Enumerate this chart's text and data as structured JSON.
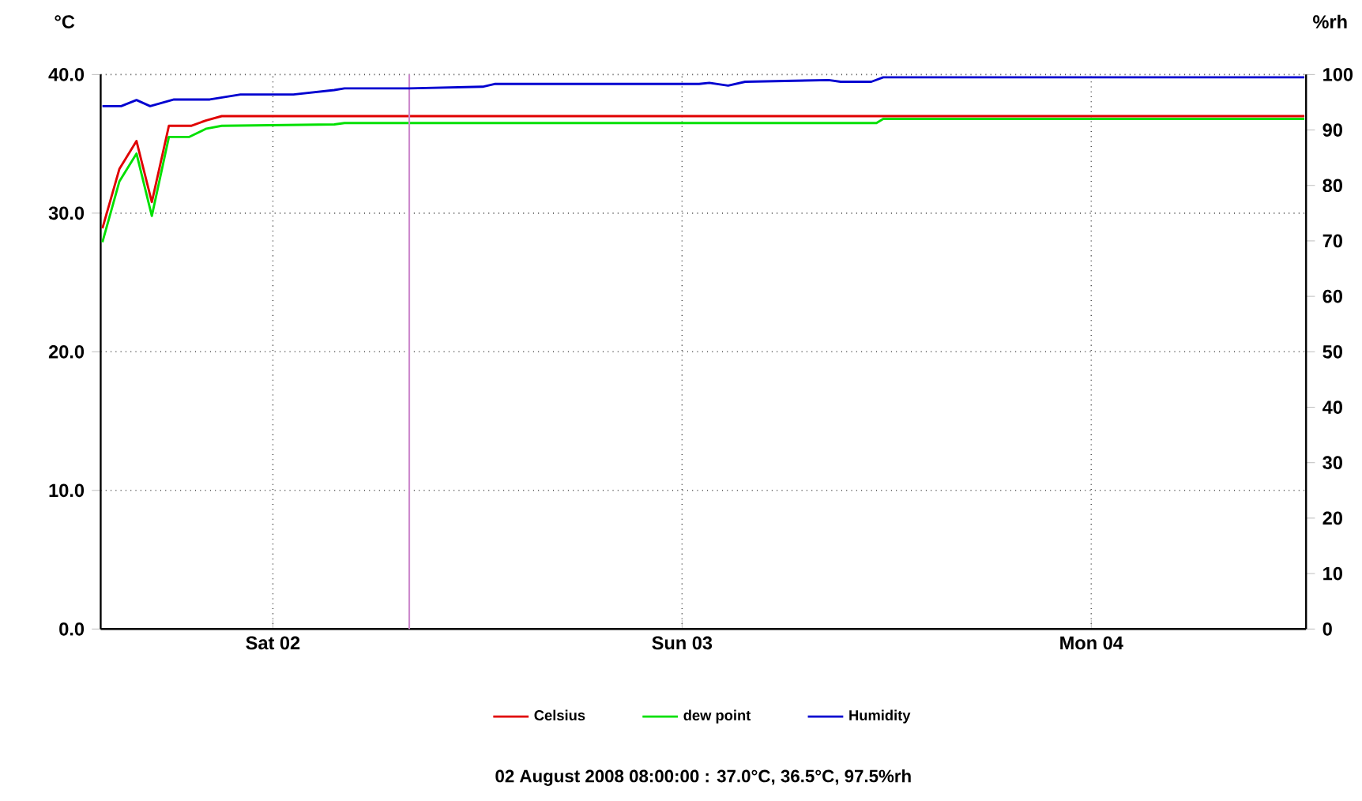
{
  "chart_data": {
    "type": "line",
    "ylabel": "°C",
    "y2label": "%rh",
    "xlim": [
      "2008-08-01T13:54",
      "2008-08-04T12:36"
    ],
    "xticks": [
      {
        "value": "2008-08-02",
        "label": "Sat 02"
      },
      {
        "value": "2008-08-03",
        "label": "Sun 03"
      },
      {
        "value": "2008-08-04",
        "label": "Mon 04"
      }
    ],
    "ylim": [
      0,
      40
    ],
    "yticks": [
      {
        "value": 0,
        "label": "0.0"
      },
      {
        "value": 10,
        "label": "10.0"
      },
      {
        "value": 20,
        "label": "20.0"
      },
      {
        "value": 30,
        "label": "30.0"
      },
      {
        "value": 40,
        "label": "40.0"
      }
    ],
    "y2lim": [
      0,
      100
    ],
    "y2ticks": [
      0,
      10,
      20,
      30,
      40,
      50,
      60,
      70,
      80,
      90,
      100
    ],
    "grid": true,
    "legend": "bottom",
    "marker": "none",
    "line_style": "solid",
    "ref_lines": [
      {
        "axis": "x",
        "value": "2008-08-02T08:00",
        "color": "#cc88cc"
      }
    ],
    "series": [
      {
        "name": "Celsius",
        "color": "#e00000",
        "x": [
          "2008-08-01T14:00",
          "2008-08-01T15:00",
          "2008-08-01T16:00",
          "2008-08-01T16:54",
          "2008-08-01T17:54",
          "2008-08-01T19:12",
          "2008-08-01T20:06",
          "2008-08-01T21:00",
          "2008-08-04T12:30"
        ],
        "values": [
          28.9,
          33.2,
          35.2,
          30.8,
          36.3,
          36.3,
          36.7,
          37.0,
          37.0
        ]
      },
      {
        "name": "dew point",
        "color": "#00e000",
        "x": [
          "2008-08-01T14:00",
          "2008-08-01T15:00",
          "2008-08-01T16:00",
          "2008-08-01T16:54",
          "2008-08-01T17:54",
          "2008-08-01T19:06",
          "2008-08-01T20:06",
          "2008-08-01T21:00",
          "2008-08-02T03:36",
          "2008-08-02T04:12",
          "2008-08-03T11:24",
          "2008-08-03T11:48",
          "2008-08-04T12:30"
        ],
        "values": [
          27.9,
          32.3,
          34.3,
          29.8,
          35.5,
          35.5,
          36.1,
          36.3,
          36.4,
          36.5,
          36.5,
          36.8,
          36.8
        ]
      },
      {
        "name": "Humidity",
        "color": "#0000d0",
        "axis": "y2",
        "x": [
          "2008-08-01T14:00",
          "2008-08-01T15:06",
          "2008-08-01T16:00",
          "2008-08-01T16:48",
          "2008-08-01T18:12",
          "2008-08-01T20:18",
          "2008-08-01T22:06",
          "2008-08-02T01:12",
          "2008-08-02T03:36",
          "2008-08-02T04:12",
          "2008-08-02T08:00",
          "2008-08-02T12:18",
          "2008-08-02T13:00",
          "2008-08-03T01:00",
          "2008-08-03T01:36",
          "2008-08-03T02:42",
          "2008-08-03T03:42",
          "2008-08-03T08:36",
          "2008-08-03T09:18",
          "2008-08-03T11:06",
          "2008-08-03T11:48",
          "2008-08-04T12:30"
        ],
        "values": [
          94.3,
          94.3,
          95.4,
          94.3,
          95.5,
          95.5,
          96.4,
          96.4,
          97.2,
          97.5,
          97.5,
          97.8,
          98.3,
          98.3,
          98.5,
          98.0,
          98.7,
          99.0,
          98.7,
          98.7,
          99.5,
          99.5
        ]
      }
    ],
    "annotations": [
      "02 August 2008 08:00:00 : 37.0°C, 36.5°C, 97.5%rh"
    ]
  }
}
